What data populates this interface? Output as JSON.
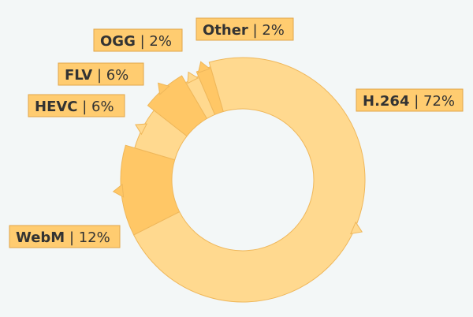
{
  "chart_data": {
    "type": "pie",
    "variant": "donut",
    "title": "",
    "series": [
      {
        "values": [
          {
            "label": "H.264",
            "value": 72,
            "display": "72%",
            "color": "#ffd98f",
            "label_side": "right"
          },
          {
            "label": "WebM",
            "value": 12,
            "display": "12%",
            "color": "#ffc766",
            "label_side": "left"
          },
          {
            "label": "HEVC",
            "value": 6,
            "display": "6%",
            "color": "#ffd98f",
            "label_side": "left"
          },
          {
            "label": "FLV",
            "value": 6,
            "display": "6%",
            "color": "#ffc766",
            "label_side": "left"
          },
          {
            "label": "OGG",
            "value": 2,
            "display": "2%",
            "color": "#ffd98f",
            "label_side": "left"
          },
          {
            "label": "Other",
            "value": 2,
            "display": "2%",
            "color": "#ffc766",
            "label_side": "right"
          }
        ]
      }
    ],
    "label_box_color": "#ffcc70",
    "background": "#f3f7f7"
  }
}
